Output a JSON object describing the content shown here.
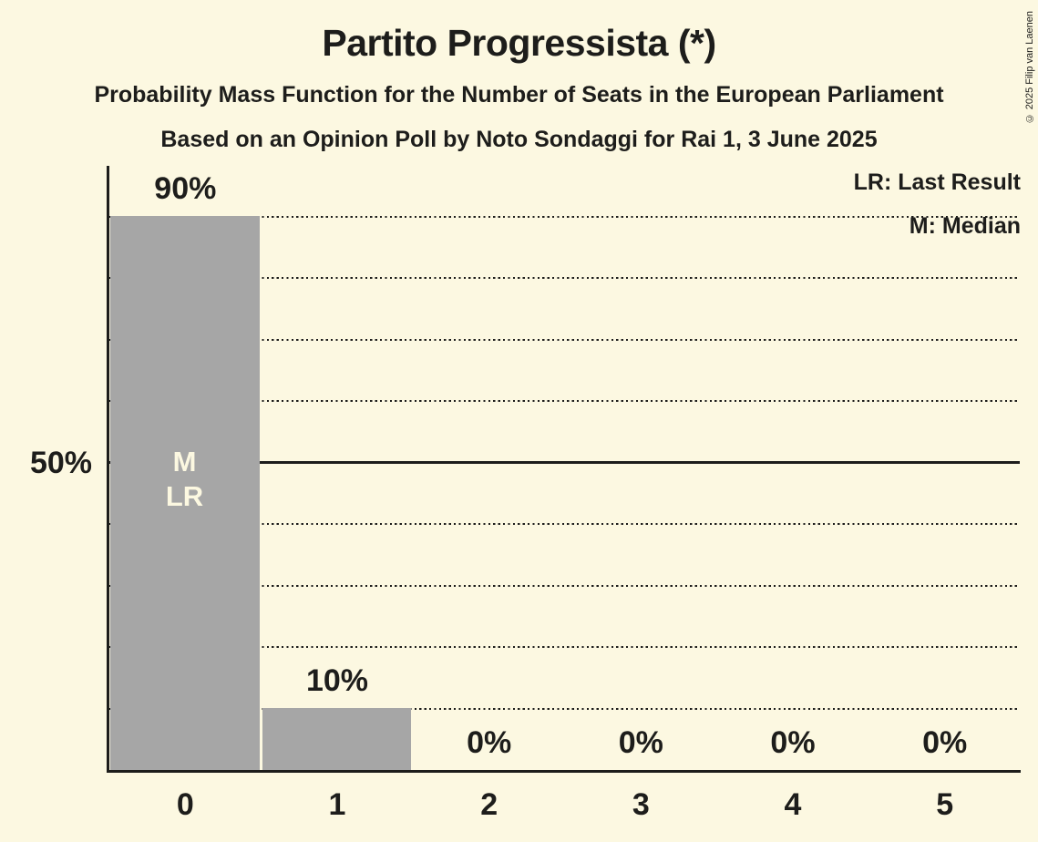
{
  "header": {
    "title": "Partito Progressista (*)",
    "subtitle1": "Probability Mass Function for the Number of Seats in the European Parliament",
    "subtitle2": "Based on an Opinion Poll by Noto Sondaggi for Rai 1, 3 June 2025"
  },
  "copyright": "© 2025 Filip van Laenen",
  "legend": {
    "lr": "LR: Last Result",
    "m": "M: Median"
  },
  "axis": {
    "y_label_50": "50%"
  },
  "annotations": {
    "median_label": "M",
    "last_result_label": "LR"
  },
  "chart_data": {
    "type": "bar",
    "title": "Partito Progressista (*)",
    "categories": [
      "0",
      "1",
      "2",
      "3",
      "4",
      "5"
    ],
    "values": [
      90,
      10,
      0,
      0,
      0,
      0
    ],
    "value_labels": [
      "90%",
      "10%",
      "0%",
      "0%",
      "0%",
      "0%"
    ],
    "xlabel": "",
    "ylabel": "",
    "ylim": [
      0,
      98
    ],
    "y_tick_labeled": [
      50
    ],
    "gridlines_pct": [
      10,
      20,
      30,
      40,
      50,
      60,
      70,
      80,
      90
    ],
    "solid_gridline_pct": 50,
    "median_seat": 0,
    "last_result_seat": 0,
    "grid": "dotted-horizontal",
    "legend_position": "top-right",
    "colors": {
      "background": "#FCF8E1",
      "bar": "#A6A6A6",
      "text": "#1D1D1B",
      "bar_inner_label": "#FCF8E1"
    }
  }
}
